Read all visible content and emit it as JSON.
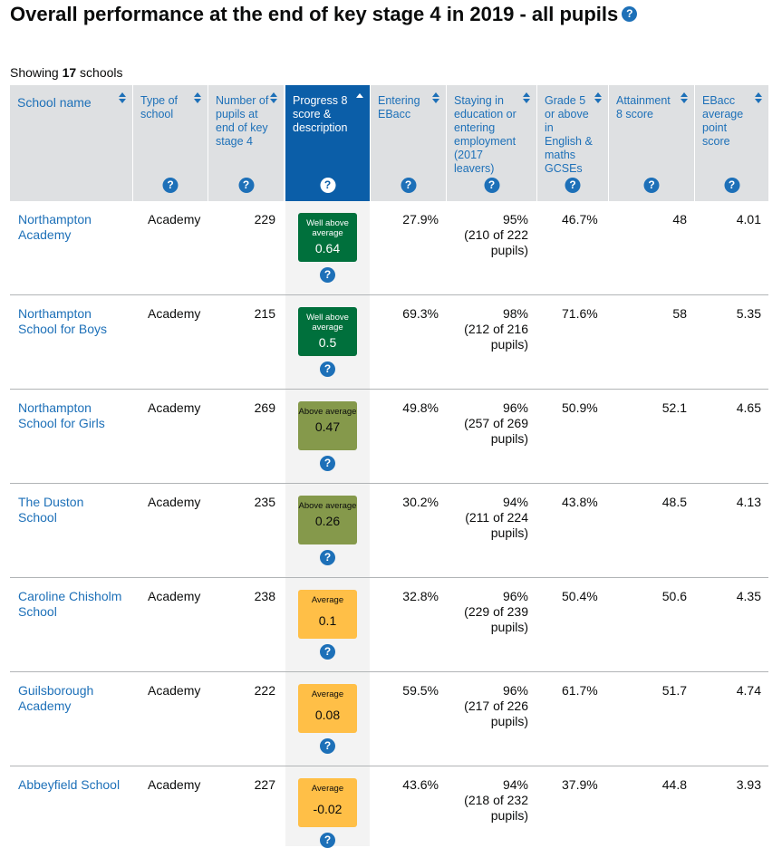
{
  "page": {
    "title": "Overall performance at the end of key stage 4 in 2019 - all pupils",
    "help_icon": "question-mark-icon",
    "showing_prefix": "Showing ",
    "showing_count": "17",
    "showing_suffix": " schools"
  },
  "columns": [
    {
      "label": "School name",
      "help": false
    },
    {
      "label": "Type of school",
      "help": true
    },
    {
      "label": "Number of pupils at end of key stage 4",
      "help": true
    },
    {
      "label": "Progress 8 score & description",
      "help": true,
      "active": true
    },
    {
      "label": "Entering EBacc",
      "help": true
    },
    {
      "label": "Staying in education or entering employment (2017 leavers)",
      "help": true
    },
    {
      "label": "Grade 5 or above in English & maths GCSEs",
      "help": true
    },
    {
      "label": "Attainment 8 score",
      "help": true
    },
    {
      "label": "EBacc average point score",
      "help": true
    }
  ],
  "help_glyph": "?",
  "badge_colors": {
    "well_above": "#00703c",
    "above": "#85994b",
    "average": "#ffbf47"
  },
  "rows": [
    {
      "school": "Northampton Academy",
      "type": "Academy",
      "pupils": "229",
      "p8_desc": "Well above average",
      "p8_score": "0.64",
      "ebacc": "27.9%",
      "staying": "95%",
      "staying_detail": "(210 of 222 pupils)",
      "grade5": "46.7%",
      "att8": "48",
      "ebacc_aps": "4.01"
    },
    {
      "school": "Northampton School for Boys",
      "type": "Academy",
      "pupils": "215",
      "p8_desc": "Well above average",
      "p8_score": "0.5",
      "ebacc": "69.3%",
      "staying": "98%",
      "staying_detail": "(212 of 216 pupils)",
      "grade5": "71.6%",
      "att8": "58",
      "ebacc_aps": "5.35"
    },
    {
      "school": "Northampton School for Girls",
      "type": "Academy",
      "pupils": "269",
      "p8_desc": "Above average",
      "p8_score": "0.47",
      "ebacc": "49.8%",
      "staying": "96%",
      "staying_detail": "(257 of 269 pupils)",
      "grade5": "50.9%",
      "att8": "52.1",
      "ebacc_aps": "4.65"
    },
    {
      "school": "The Duston School",
      "type": "Academy",
      "pupils": "235",
      "p8_desc": "Above average",
      "p8_score": "0.26",
      "ebacc": "30.2%",
      "staying": "94%",
      "staying_detail": "(211 of 224 pupils)",
      "grade5": "43.8%",
      "att8": "48.5",
      "ebacc_aps": "4.13"
    },
    {
      "school": "Caroline Chisholm School",
      "type": "Academy",
      "pupils": "238",
      "p8_desc": "Average",
      "p8_score": "0.1",
      "ebacc": "32.8%",
      "staying": "96%",
      "staying_detail": "(229 of 239 pupils)",
      "grade5": "50.4%",
      "att8": "50.6",
      "ebacc_aps": "4.35"
    },
    {
      "school": "Guilsborough Academy",
      "type": "Academy",
      "pupils": "222",
      "p8_desc": "Average",
      "p8_score": "0.08",
      "ebacc": "59.5%",
      "staying": "96%",
      "staying_detail": "(217 of 226 pupils)",
      "grade5": "61.7%",
      "att8": "51.7",
      "ebacc_aps": "4.74"
    },
    {
      "school": "Abbeyfield School",
      "type": "Academy",
      "pupils": "227",
      "p8_desc": "Average",
      "p8_score": "-0.02",
      "ebacc": "43.6%",
      "staying": "94%",
      "staying_detail": "(218 of 232 pupils)",
      "grade5": "37.9%",
      "att8": "44.8",
      "ebacc_aps": "3.93"
    }
  ]
}
